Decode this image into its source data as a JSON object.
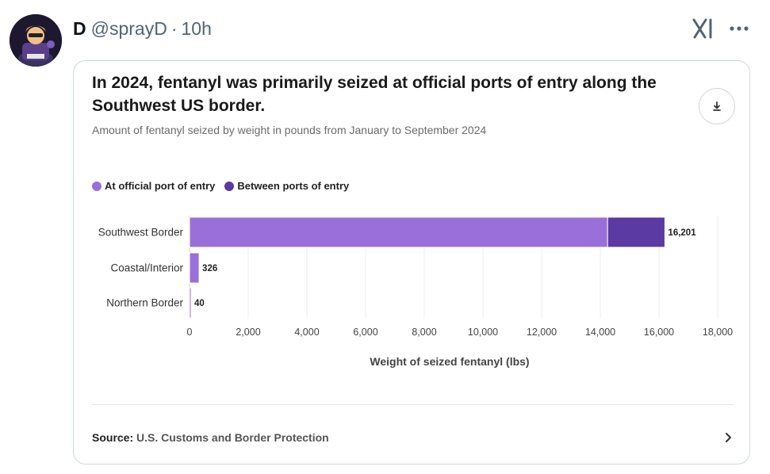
{
  "tweet": {
    "name": "D",
    "handle": "@sprayD",
    "separator": "·",
    "time": "10h",
    "avatar_icon": "avatar-cartoon-icon",
    "grok_icon": "grok-icon",
    "more_icon": "more-horizontal-icon"
  },
  "card": {
    "title": "In 2024, fentanyl was primarily seized at official ports of entry along the Southwest US border.",
    "subtitle": "Amount of fentanyl seized by weight in pounds from January to September 2024",
    "download_icon": "download-icon",
    "source_label": "Source:",
    "source_value": "U.S. Customs and Border Protection",
    "source_chevron_icon": "chevron-right-icon"
  },
  "chart_data": {
    "type": "bar",
    "orientation": "horizontal",
    "stacked": true,
    "title": "In 2024, fentanyl was primarily seized at official ports of entry along the Southwest US border.",
    "subtitle": "Amount of fentanyl seized by weight in pounds from January to September 2024",
    "categories": [
      "Southwest Border",
      "Coastal/Interior",
      "Northern Border"
    ],
    "series": [
      {
        "name": "At official port of entry",
        "color": "#9b6fd8",
        "values": [
          14250,
          326,
          40
        ]
      },
      {
        "name": "Between ports of entry",
        "color": "#5b3aa3",
        "values": [
          1951,
          0,
          0
        ]
      }
    ],
    "totals": [
      16201,
      326,
      40
    ],
    "total_labels": [
      "16,201",
      "326",
      "40"
    ],
    "xlabel": "Weight of seized fentanyl (lbs)",
    "ylabel": "",
    "xlim": [
      0,
      18000
    ],
    "xticks": [
      0,
      2000,
      4000,
      6000,
      8000,
      10000,
      12000,
      14000,
      16000,
      18000
    ],
    "xtick_labels": [
      "0",
      "2,000",
      "4,000",
      "6,000",
      "8,000",
      "10,000",
      "12,000",
      "14,000",
      "16,000",
      "18,000"
    ],
    "grid": "vertical",
    "legend_position": "top-left"
  }
}
